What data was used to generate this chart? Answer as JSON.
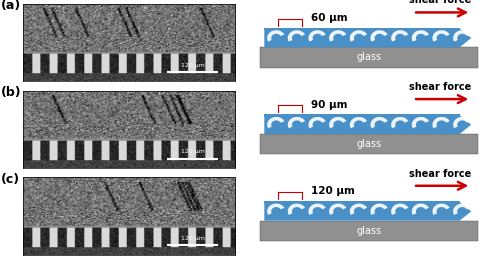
{
  "rows": [
    {
      "label": "a",
      "dimension": "60 μm",
      "scale_label": "120 μm"
    },
    {
      "label": "b",
      "dimension": "90 μm",
      "scale_label": "120 μm"
    },
    {
      "label": "c",
      "dimension": "120 μm",
      "scale_label": "120 μm"
    }
  ],
  "blue_color": "#4A90C8",
  "blue_top": "#5BA3D9",
  "glass_color": "#909090",
  "red_color": "#CC0000",
  "white_color": "#FFFFFF",
  "bg_color": "#FFFFFF",
  "label_fontsize": 9,
  "dim_fontsize": 7.5,
  "shear_fontsize": 7,
  "glass_fontsize": 7
}
